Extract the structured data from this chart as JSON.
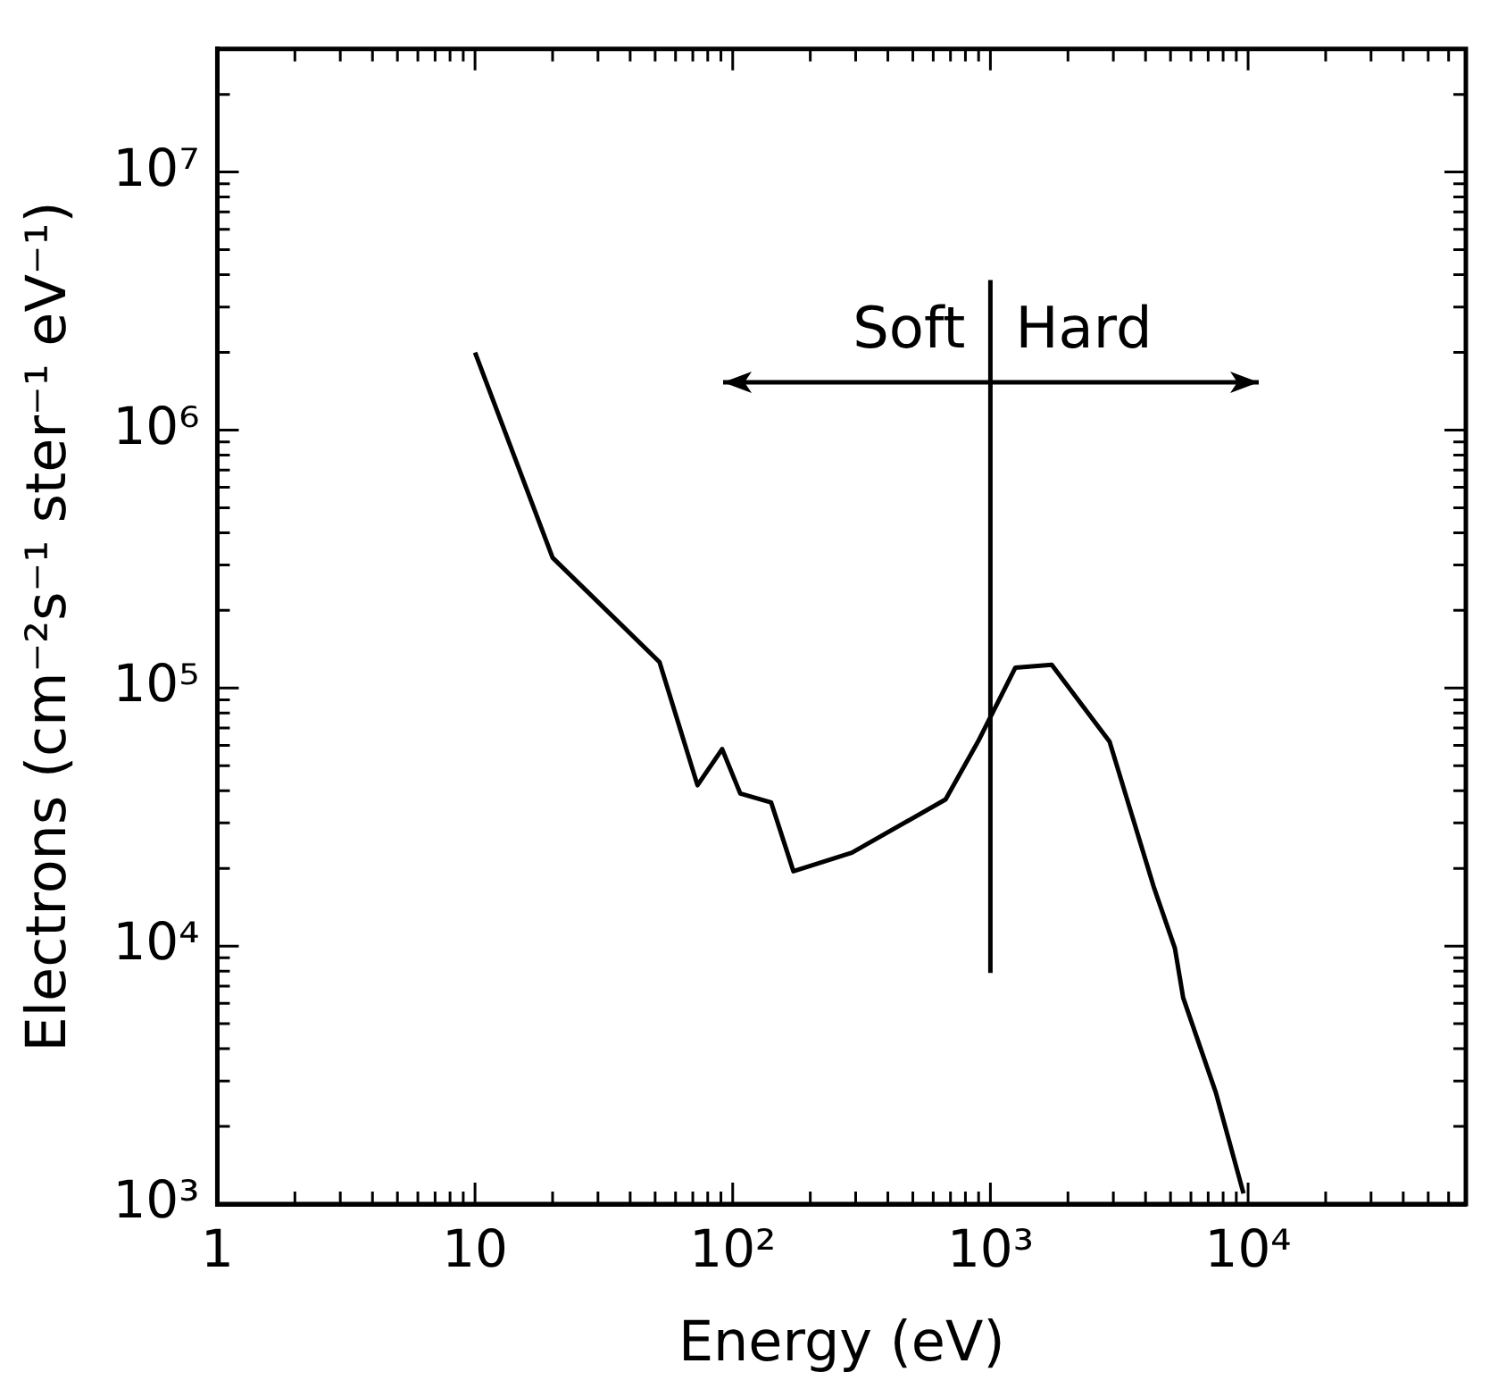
{
  "chart_data": {
    "type": "line",
    "xlabel": "Energy (eV)",
    "ylabel": "Electrons (cm⁻²s⁻¹ ster⁻¹ eV⁻¹)",
    "log": "xy",
    "grid": false,
    "legend": false,
    "marker": "none",
    "line_style": "solid",
    "xlim": [
      1,
      70000
    ],
    "ylim": [
      1000,
      30000000
    ],
    "xticks": [
      {
        "value": 1,
        "label": "1"
      },
      {
        "value": 2,
        "label": null
      },
      {
        "value": 3,
        "label": null
      },
      {
        "value": 4,
        "label": null
      },
      {
        "value": 5,
        "label": null
      },
      {
        "value": 6,
        "label": null
      },
      {
        "value": 7,
        "label": null
      },
      {
        "value": 8,
        "label": null
      },
      {
        "value": 9,
        "label": null
      },
      {
        "value": 10,
        "label": "10"
      },
      {
        "value": 20,
        "label": null
      },
      {
        "value": 30,
        "label": null
      },
      {
        "value": 40,
        "label": null
      },
      {
        "value": 50,
        "label": null
      },
      {
        "value": 60,
        "label": null
      },
      {
        "value": 70,
        "label": null
      },
      {
        "value": 80,
        "label": null
      },
      {
        "value": 90,
        "label": null
      },
      {
        "value": 100,
        "label": "10²"
      },
      {
        "value": 200,
        "label": null
      },
      {
        "value": 300,
        "label": null
      },
      {
        "value": 400,
        "label": null
      },
      {
        "value": 500,
        "label": null
      },
      {
        "value": 600,
        "label": null
      },
      {
        "value": 700,
        "label": null
      },
      {
        "value": 800,
        "label": null
      },
      {
        "value": 900,
        "label": null
      },
      {
        "value": 1000,
        "label": "10³"
      },
      {
        "value": 2000,
        "label": null
      },
      {
        "value": 3000,
        "label": null
      },
      {
        "value": 4000,
        "label": null
      },
      {
        "value": 5000,
        "label": null
      },
      {
        "value": 6000,
        "label": null
      },
      {
        "value": 7000,
        "label": null
      },
      {
        "value": 8000,
        "label": null
      },
      {
        "value": 9000,
        "label": null
      },
      {
        "value": 10000,
        "label": "10⁴"
      },
      {
        "value": 20000,
        "label": null
      },
      {
        "value": 30000,
        "label": null
      },
      {
        "value": 40000,
        "label": null
      },
      {
        "value": 50000,
        "label": null
      },
      {
        "value": 60000,
        "label": null
      }
    ],
    "yticks": [
      {
        "value": 1000,
        "label": "10³"
      },
      {
        "value": 2000,
        "label": null
      },
      {
        "value": 3000,
        "label": null
      },
      {
        "value": 4000,
        "label": null
      },
      {
        "value": 5000,
        "label": null
      },
      {
        "value": 6000,
        "label": null
      },
      {
        "value": 7000,
        "label": null
      },
      {
        "value": 8000,
        "label": null
      },
      {
        "value": 9000,
        "label": null
      },
      {
        "value": 10000,
        "label": "10⁴"
      },
      {
        "value": 20000,
        "label": null
      },
      {
        "value": 30000,
        "label": null
      },
      {
        "value": 40000,
        "label": null
      },
      {
        "value": 50000,
        "label": null
      },
      {
        "value": 60000,
        "label": null
      },
      {
        "value": 70000,
        "label": null
      },
      {
        "value": 80000,
        "label": null
      },
      {
        "value": 90000,
        "label": null
      },
      {
        "value": 100000,
        "label": "10⁵"
      },
      {
        "value": 200000,
        "label": null
      },
      {
        "value": 300000,
        "label": null
      },
      {
        "value": 400000,
        "label": null
      },
      {
        "value": 500000,
        "label": null
      },
      {
        "value": 600000,
        "label": null
      },
      {
        "value": 700000,
        "label": null
      },
      {
        "value": 800000,
        "label": null
      },
      {
        "value": 900000,
        "label": null
      },
      {
        "value": 1000000,
        "label": "10⁶"
      },
      {
        "value": 2000000,
        "label": null
      },
      {
        "value": 3000000,
        "label": null
      },
      {
        "value": 4000000,
        "label": null
      },
      {
        "value": 5000000,
        "label": null
      },
      {
        "value": 6000000,
        "label": null
      },
      {
        "value": 7000000,
        "label": null
      },
      {
        "value": 8000000,
        "label": null
      },
      {
        "value": 9000000,
        "label": null
      },
      {
        "value": 10000000,
        "label": "10⁷"
      },
      {
        "value": 20000000,
        "label": null
      }
    ],
    "x": [
      10,
      20,
      52,
      73,
      91,
      107,
      141,
      172,
      290,
      670,
      895,
      1250,
      1730,
      2900,
      4300,
      5200,
      5600,
      7500,
      9600
    ],
    "series": [
      {
        "color": "#000000",
        "values": [
          2000000,
          320000,
          126000,
          42000,
          58000,
          39000,
          36000,
          19500,
          23000,
          37000,
          62000,
          120000,
          123000,
          62000,
          17000,
          9800,
          6300,
          2700,
          1100
        ]
      }
    ],
    "ref_lines": [
      {
        "axis": "x",
        "value": 1000,
        "color": "#000000"
      }
    ],
    "annotations": [
      "Soft",
      "Hard"
    ]
  }
}
